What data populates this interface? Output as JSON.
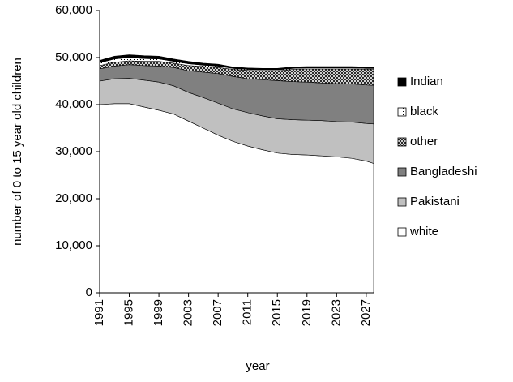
{
  "chart_data": {
    "type": "stacked_area",
    "x_label": "year",
    "y_label": "number of 0 to 15 year old children",
    "x": [
      1991,
      1993,
      1995,
      1997,
      1999,
      2001,
      2003,
      2005,
      2007,
      2009,
      2011,
      2013,
      2015,
      2017,
      2019,
      2021,
      2023,
      2025,
      2027,
      2028
    ],
    "xlim": [
      1991,
      2028
    ],
    "xticks": [
      1991,
      1995,
      1999,
      2003,
      2007,
      2011,
      2015,
      2019,
      2023,
      2027
    ],
    "ylim": [
      0,
      60000
    ],
    "yticks": [
      0,
      {
        "value": 10000,
        "label": "10,000"
      },
      {
        "value": 20000,
        "label": "20,000"
      },
      {
        "value": 30000,
        "label": "30,000"
      },
      {
        "value": 40000,
        "label": "40,000"
      },
      {
        "value": 50000,
        "label": "50,000"
      },
      {
        "value": 60000,
        "label": "60,000"
      }
    ],
    "series": [
      {
        "name": "white",
        "color": "#ffffff",
        "values": [
          40000,
          40200,
          40200,
          39500,
          38800,
          38000,
          36500,
          35000,
          33500,
          32200,
          31200,
          30400,
          29700,
          29400,
          29300,
          29100,
          28900,
          28600,
          28000,
          27500
        ]
      },
      {
        "name": "Pakistani",
        "color": "#c0c0c0",
        "values": [
          5000,
          5300,
          5400,
          5700,
          6000,
          6000,
          6100,
          6500,
          6800,
          6900,
          7100,
          7200,
          7300,
          7400,
          7400,
          7500,
          7500,
          7700,
          8000,
          8400
        ]
      },
      {
        "name": "Bangladeshi",
        "color": "#808080",
        "values": [
          2600,
          2700,
          2900,
          3100,
          3400,
          3900,
          4600,
          5400,
          6300,
          6900,
          7200,
          7700,
          8100,
          8100,
          8100,
          8000,
          8100,
          8100,
          8200,
          8200
        ]
      },
      {
        "name": "other",
        "color": "#000000",
        "pattern": "crosshatch",
        "values": [
          700,
          800,
          800,
          900,
          1000,
          900,
          1100,
          1200,
          1300,
          1500,
          1800,
          1900,
          2100,
          2600,
          2800,
          3000,
          3100,
          3200,
          3300,
          3400
        ]
      },
      {
        "name": "black",
        "color": "#000000",
        "pattern": "dots",
        "values": [
          600,
          700,
          700,
          600,
          500,
          400,
          400,
          300,
          300,
          200,
          200,
          200,
          200,
          200,
          200,
          200,
          200,
          200,
          200,
          200
        ]
      },
      {
        "name": "Indian",
        "color": "#000000",
        "values": [
          500,
          600,
          600,
          600,
          600,
          500,
          500,
          400,
          400,
          300,
          300,
          300,
          300,
          300,
          300,
          300,
          300,
          300,
          300,
          300
        ]
      }
    ],
    "legend": "right"
  }
}
